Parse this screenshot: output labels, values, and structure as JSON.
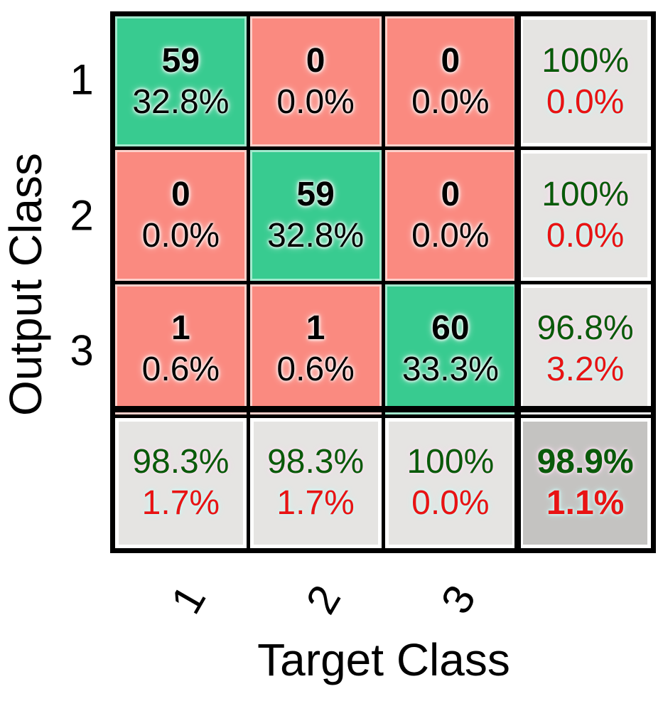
{
  "colors": {
    "diagonal_green": "#38cb90",
    "off_diagonal_red": "#fa8a80",
    "summary_gray": "#e5e4e2",
    "overall_gray": "#c4c3c1",
    "good_text_green": "#0a5a0a",
    "bad_text_red": "#e81414",
    "grid_black": "#000000"
  },
  "chart_data": {
    "type": "heatmap",
    "subtype": "confusion-matrix",
    "title": "",
    "xlabel": "Target Class",
    "ylabel": "Output Class",
    "x_tick_labels": [
      "1",
      "2",
      "3"
    ],
    "y_tick_labels": [
      "1",
      "2",
      "3"
    ],
    "matrix_counts": [
      [
        59,
        0,
        0
      ],
      [
        0,
        59,
        0
      ],
      [
        1,
        1,
        60
      ]
    ],
    "matrix_percent_of_total": [
      [
        "32.8%",
        "0.0%",
        "0.0%"
      ],
      [
        "0.0%",
        "32.8%",
        "0.0%"
      ],
      [
        "0.6%",
        "0.6%",
        "33.3%"
      ]
    ],
    "overall_accuracy": "98.9%",
    "overall_error": "1.1%",
    "cells": {
      "r1": [
        {
          "count": "59",
          "pct": "32.8%"
        },
        {
          "count": "0",
          "pct": "0.0%"
        },
        {
          "count": "0",
          "pct": "0.0%"
        },
        {
          "top": "100%",
          "bottom": "0.0%"
        }
      ],
      "r2": [
        {
          "count": "0",
          "pct": "0.0%"
        },
        {
          "count": "59",
          "pct": "32.8%"
        },
        {
          "count": "0",
          "pct": "0.0%"
        },
        {
          "top": "100%",
          "bottom": "0.0%"
        }
      ],
      "r3": [
        {
          "count": "1",
          "pct": "0.6%"
        },
        {
          "count": "1",
          "pct": "0.6%"
        },
        {
          "count": "60",
          "pct": "33.3%"
        },
        {
          "top": "96.8%",
          "bottom": "3.2%"
        }
      ],
      "r4": [
        {
          "top": "98.3%",
          "bottom": "1.7%"
        },
        {
          "top": "98.3%",
          "bottom": "1.7%"
        },
        {
          "top": "100%",
          "bottom": "0.0%"
        },
        {
          "top": "98.9%",
          "bottom": "1.1%"
        }
      ]
    }
  }
}
